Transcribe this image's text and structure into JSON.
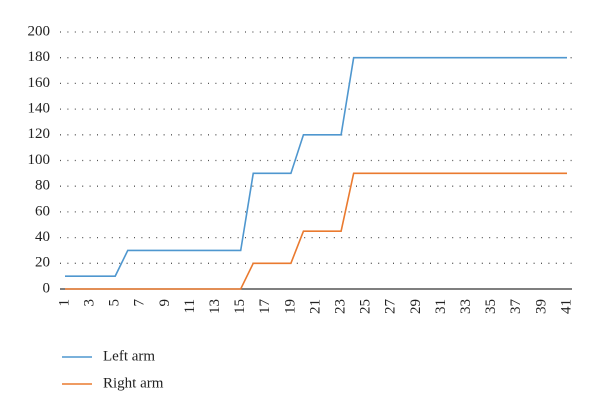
{
  "chart_data": {
    "type": "line",
    "categories": [
      "1",
      null,
      "3",
      null,
      "5",
      null,
      "7",
      null,
      "9",
      null,
      "11",
      null,
      "13",
      null,
      "15",
      null,
      "17",
      null,
      "19",
      null,
      "21",
      null,
      "23",
      null,
      "25",
      null,
      "27",
      null,
      "29",
      null,
      "31",
      null,
      "33",
      null,
      "35",
      null,
      "37",
      null,
      "39",
      null,
      "41"
    ],
    "series": [
      {
        "name": "Left arm",
        "color": "#4f97cf",
        "values": [
          10,
          10,
          10,
          10,
          10,
          30,
          30,
          30,
          30,
          30,
          30,
          30,
          30,
          30,
          30,
          90,
          90,
          90,
          90,
          120,
          120,
          120,
          120,
          180,
          180,
          180,
          180,
          180,
          180,
          180,
          180,
          180,
          180,
          180,
          180,
          180,
          180,
          180,
          180,
          180,
          180
        ]
      },
      {
        "name": "Right arm",
        "color": "#ea7a2f",
        "values": [
          0,
          0,
          0,
          0,
          0,
          0,
          0,
          0,
          0,
          0,
          0,
          0,
          0,
          0,
          0,
          20,
          20,
          20,
          20,
          45,
          45,
          45,
          45,
          90,
          90,
          90,
          90,
          90,
          90,
          90,
          90,
          90,
          90,
          90,
          90,
          90,
          90,
          90,
          90,
          90,
          90
        ]
      }
    ],
    "ylim": [
      0,
      200
    ],
    "yticks": [
      0,
      20,
      40,
      60,
      80,
      100,
      120,
      140,
      160,
      180,
      200
    ],
    "grid": true
  }
}
